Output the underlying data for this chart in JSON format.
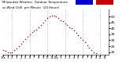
{
  "title": "Milwaukee Weather  Outdoor Temperature",
  "subtitle": "vs Wind Chill  per Minute  (24 Hours)",
  "legend_colors": [
    "#0000cc",
    "#cc0000"
  ],
  "dot_color": "#dd0000",
  "bg_color": "#ffffff",
  "grid_color": "#999999",
  "grid_x_positions": [
    120,
    360,
    600,
    840,
    1080,
    1320
  ],
  "x_tick_positions": [
    0,
    60,
    120,
    180,
    240,
    300,
    360,
    420,
    480,
    540,
    600,
    660,
    720,
    780,
    840,
    900,
    960,
    1020,
    1080,
    1140,
    1200,
    1260,
    1320,
    1380
  ],
  "x_labels": [
    "12a",
    "1",
    "2",
    "3",
    "4",
    "5",
    "6",
    "7",
    "8",
    "9",
    "10",
    "11",
    "12p",
    "1",
    "2",
    "3",
    "4",
    "5",
    "6",
    "7",
    "8",
    "9",
    "10",
    "11"
  ],
  "ylim": [
    18,
    56
  ],
  "y_ticks": [
    20,
    25,
    30,
    35,
    40,
    45,
    50
  ],
  "xlim": [
    -10,
    1430
  ],
  "data_x": [
    0,
    30,
    60,
    90,
    120,
    150,
    180,
    210,
    240,
    270,
    300,
    330,
    360,
    390,
    420,
    450,
    480,
    510,
    540,
    570,
    600,
    630,
    660,
    690,
    720,
    750,
    780,
    810,
    840,
    870,
    900,
    930,
    960,
    990,
    1020,
    1050,
    1080,
    1110,
    1140,
    1170,
    1200,
    1230,
    1260,
    1290,
    1320,
    1350,
    1380
  ],
  "data_y": [
    22,
    21,
    20,
    20,
    20,
    22,
    23,
    25,
    27,
    29,
    31,
    33,
    35,
    37,
    38,
    39,
    41,
    43,
    45,
    47,
    49,
    50,
    51,
    51,
    50,
    49,
    47,
    46,
    44,
    43,
    41,
    40,
    38,
    36,
    34,
    32,
    30,
    28,
    26,
    24,
    22,
    20,
    19,
    17,
    16,
    15,
    15
  ]
}
